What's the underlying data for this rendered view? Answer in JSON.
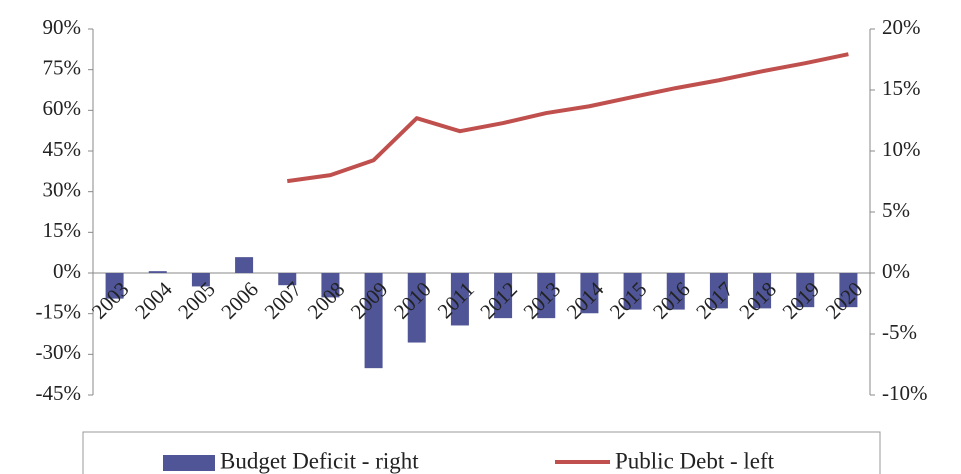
{
  "chart_data": {
    "type": "bar_line",
    "categories": [
      "2003",
      "2004",
      "2005",
      "2006",
      "2007",
      "2008",
      "2009",
      "2010",
      "2011",
      "2012",
      "2013",
      "2014",
      "2015",
      "2016",
      "2017",
      "2018",
      "2019",
      "2020"
    ],
    "series": [
      {
        "name": "Budget Deficit - right",
        "color": "#4f5596",
        "type": "bar",
        "axis": "y2",
        "values": [
          -2.1,
          0.15,
          -1.1,
          1.3,
          -1.0,
          -2.0,
          -7.8,
          -5.7,
          -4.3,
          -3.7,
          -3.7,
          -3.3,
          -3.0,
          -3.0,
          -2.9,
          -2.9,
          -2.8,
          -2.8
        ]
      },
      {
        "name": "Public Debt - left",
        "color": "#c0504d",
        "type": "line",
        "axis": "y",
        "values": [
          null,
          null,
          null,
          null,
          33.9,
          36.1,
          41.6,
          57.1,
          52.3,
          55.3,
          59.0,
          61.5,
          64.9,
          68.2,
          71.1,
          74.4,
          77.4,
          80.7
        ]
      }
    ],
    "ylim": [
      -45,
      90
    ],
    "yticks": [
      {
        "value": -45,
        "label": "-45%"
      },
      {
        "value": -30,
        "label": "-30%"
      },
      {
        "value": -15,
        "label": "-15%"
      },
      {
        "value": 0,
        "label": "0%"
      },
      {
        "value": 15,
        "label": "15%"
      },
      {
        "value": 30,
        "label": "30%"
      },
      {
        "value": 45,
        "label": "45%"
      },
      {
        "value": 60,
        "label": "60%"
      },
      {
        "value": 75,
        "label": "75%"
      },
      {
        "value": 90,
        "label": "90%"
      }
    ],
    "y2lim": [
      -10,
      20
    ],
    "y2ticks": [
      {
        "value": -10,
        "label": "-10%"
      },
      {
        "value": -5,
        "label": "-5%"
      },
      {
        "value": 0,
        "label": "0%"
      },
      {
        "value": 5,
        "label": "5%"
      },
      {
        "value": 10,
        "label": "10%"
      },
      {
        "value": 15,
        "label": "15%"
      },
      {
        "value": 20,
        "label": "20%"
      }
    ],
    "legend": "bottom"
  }
}
